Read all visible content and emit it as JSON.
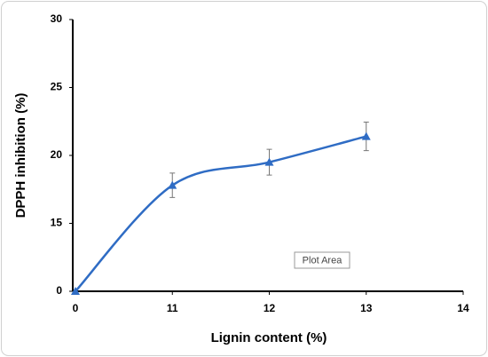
{
  "chart_data": {
    "type": "line",
    "x_label": "Lignin content (%)",
    "y_label": "DPPH inhibition (%)",
    "x": [
      0,
      11,
      12,
      13
    ],
    "series": [
      {
        "color": "#2f6cc4",
        "values": [
          0,
          17.8,
          19.5,
          21.4
        ],
        "errors": [
          0,
          0.9,
          0.95,
          1.05
        ]
      }
    ],
    "xlim": [
      0,
      14
    ],
    "xticks": [
      0,
      11,
      12,
      13,
      14
    ],
    "ylim": [
      0,
      30
    ],
    "yticks": [
      0,
      15,
      20,
      25,
      30
    ],
    "tooltip": "Plot Area"
  }
}
